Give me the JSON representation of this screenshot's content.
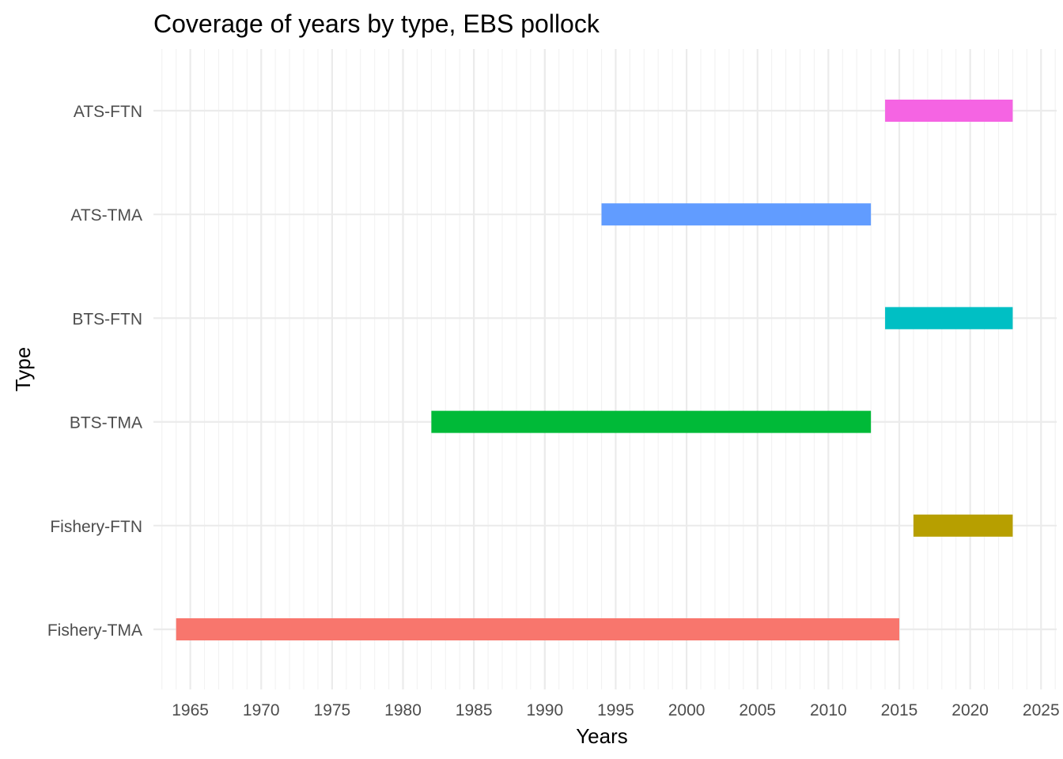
{
  "chart_data": {
    "type": "bar",
    "orientation": "horizontal-range",
    "title": "Coverage of years by type, EBS pollock",
    "xlabel": "Years",
    "ylabel": "Type",
    "xlim": [
      1962.4,
      2026.1
    ],
    "xticks": [
      1965,
      1970,
      1975,
      1980,
      1985,
      1990,
      1995,
      2000,
      2005,
      2010,
      2015,
      2020,
      2025
    ],
    "grid": true,
    "categories": [
      "ATS-FTN",
      "ATS-TMA",
      "BTS-FTN",
      "BTS-TMA",
      "Fishery-FTN",
      "Fishery-TMA"
    ],
    "series": [
      {
        "name": "ATS-FTN",
        "start": 2014,
        "end": 2023,
        "color": "#F564E3"
      },
      {
        "name": "ATS-TMA",
        "start": 1994,
        "end": 2013,
        "color": "#619CFF"
      },
      {
        "name": "BTS-FTN",
        "start": 2014,
        "end": 2023,
        "color": "#00BFC4"
      },
      {
        "name": "BTS-TMA",
        "start": 1982,
        "end": 2013,
        "color": "#00BA38"
      },
      {
        "name": "Fishery-FTN",
        "start": 2016,
        "end": 2023,
        "color": "#B79F00"
      },
      {
        "name": "Fishery-TMA",
        "start": 1964,
        "end": 2015,
        "color": "#F8766D"
      }
    ]
  }
}
